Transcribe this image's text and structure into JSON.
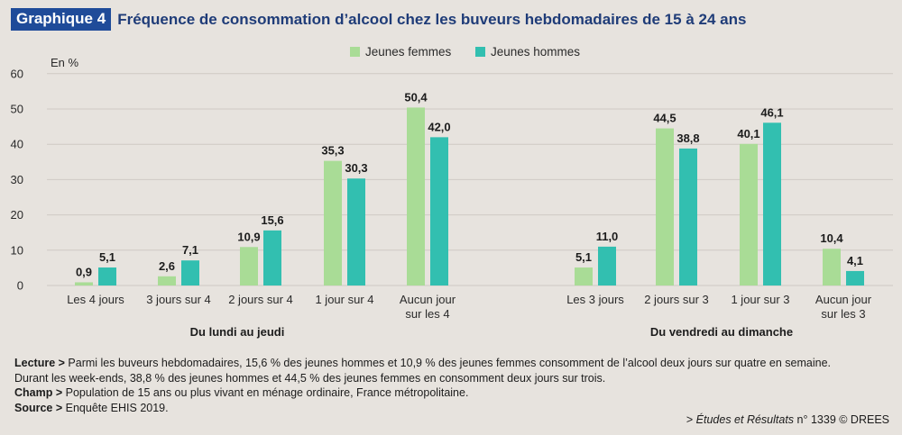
{
  "header": {
    "badge": "Graphique 4",
    "title": "Fréquence de consommation d’alcool chez les buveurs hebdomadaires de 15 à 24 ans"
  },
  "chart_data": {
    "type": "bar",
    "unit_label": "En %",
    "ylim": [
      0,
      60
    ],
    "yticks": [
      0,
      10,
      20,
      30,
      40,
      50,
      60
    ],
    "grid": true,
    "legend_position": "top-center",
    "groups": [
      {
        "label": "Du lundi au jeudi",
        "categories": [
          [
            "Les 4 jours"
          ],
          [
            "3 jours sur 4"
          ],
          [
            "2 jours sur 4"
          ],
          [
            "1 jour sur 4"
          ],
          [
            "Aucun jour",
            "sur les 4"
          ]
        ]
      },
      {
        "label": "Du vendredi au dimanche",
        "categories": [
          [
            "Les 3 jours"
          ],
          [
            "2 jours sur 3"
          ],
          [
            "1 jour sur 3"
          ],
          [
            "Aucun jour",
            "sur les 3"
          ]
        ]
      }
    ],
    "series": [
      {
        "name": "Jeunes femmes",
        "color": "#a9dc96",
        "values": [
          0.9,
          2.6,
          10.9,
          35.3,
          50.4,
          5.1,
          44.5,
          40.1,
          10.4
        ],
        "labels": [
          "0,9",
          "2,6",
          "10,9",
          "35,3",
          "50,4",
          "5,1",
          "44,5",
          "40,1",
          "10,4"
        ]
      },
      {
        "name": "Jeunes hommes",
        "color": "#32bfb0",
        "values": [
          5.1,
          7.1,
          15.6,
          30.3,
          42.0,
          11.0,
          38.8,
          46.1,
          4.1
        ],
        "labels": [
          "5,1",
          "7,1",
          "15,6",
          "30,3",
          "42,0",
          "11,0",
          "38,8",
          "46,1",
          "4,1"
        ]
      }
    ]
  },
  "notes": {
    "lecture_label": "Lecture >",
    "lecture_text1": " Parmi les buveurs hebdomadaires, 15,6 % des jeunes hommes et 10,9 % des jeunes femmes consomment de l’alcool deux jours sur quatre en semaine.",
    "lecture_text2": "Durant les week-ends, 38,8 % des jeunes hommes et 44,5 % des jeunes femmes en consomment deux jours sur trois.",
    "champ_label": "Champ >",
    "champ_text": " Population de 15 ans ou plus vivant en ménage ordinaire, France métropolitaine.",
    "source_label": "Source >",
    "source_text": " Enquête EHIS 2019."
  },
  "credit": {
    "prefix": "> ",
    "publication": "Études et Résultats",
    "suffix": " n° 1339 © DREES"
  }
}
